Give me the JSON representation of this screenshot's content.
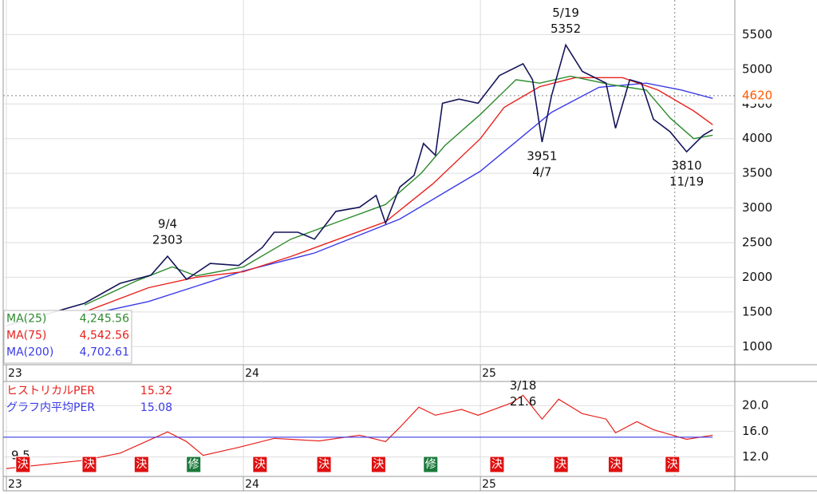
{
  "chart_data": {
    "type": "line",
    "xlim": [
      23,
      26.07
    ],
    "xticks": [
      23,
      24,
      25
    ],
    "ylim": [
      750,
      6000
    ],
    "yticks": [
      1000,
      1500,
      2000,
      2500,
      3000,
      3500,
      4000,
      4500,
      5000,
      5500
    ],
    "grid": true,
    "last_price": 4620,
    "last_price_color": "#ff5a00",
    "cursor_x": 25.82,
    "series": [
      {
        "color": "#14145a",
        "x": [
          23.0,
          23.33,
          23.48,
          23.61,
          23.68,
          23.76,
          23.86,
          23.98,
          24.08,
          24.13,
          24.23,
          24.3,
          24.39,
          24.49,
          24.56,
          24.6,
          24.66,
          24.72,
          24.76,
          24.81,
          24.84,
          24.91,
          24.99,
          25.08,
          25.18,
          25.22,
          25.26,
          25.3,
          25.36,
          25.43,
          25.53,
          25.57,
          25.63,
          25.68,
          25.73,
          25.8,
          25.87,
          25.94,
          25.98
        ],
        "values": [
          1300,
          1625,
          1913,
          2030,
          2303,
          1970,
          2200,
          2170,
          2430,
          2650,
          2650,
          2550,
          2950,
          3010,
          3180,
          2780,
          3300,
          3470,
          3930,
          3760,
          4510,
          4570,
          4510,
          4910,
          5080,
          4850,
          3951,
          4620,
          5352,
          4970,
          4800,
          4150,
          4850,
          4800,
          4280,
          4100,
          3810,
          4050,
          4130
        ]
      },
      {
        "name": "MA(25)",
        "color": "#2e8b2e",
        "last": {
          "value": 4245.56,
          "label": "4,245.56"
        },
        "x": [
          23.33,
          23.55,
          23.7,
          23.8,
          24.0,
          24.2,
          24.4,
          24.6,
          24.75,
          24.85,
          25.0,
          25.15,
          25.25,
          25.38,
          25.55,
          25.7,
          25.8,
          25.9,
          25.98
        ],
        "values": [
          1600,
          1950,
          2150,
          2020,
          2150,
          2550,
          2800,
          3050,
          3500,
          3900,
          4350,
          4850,
          4800,
          4900,
          4780,
          4700,
          4300,
          4000,
          4050
        ]
      },
      {
        "name": "MA(75)",
        "color": "#e8201c",
        "last": {
          "value": 4542.56,
          "label": "4,542.56"
        },
        "x": [
          23.33,
          23.6,
          23.8,
          24.0,
          24.2,
          24.4,
          24.6,
          24.8,
          25.0,
          25.1,
          25.25,
          25.4,
          25.6,
          25.75,
          25.9,
          25.98
        ],
        "values": [
          1500,
          1850,
          2000,
          2080,
          2300,
          2550,
          2800,
          3350,
          4000,
          4450,
          4750,
          4880,
          4880,
          4700,
          4400,
          4200
        ]
      },
      {
        "name": "MA(200)",
        "color": "#3a3ae8",
        "last": {
          "value": 4702.61,
          "label": "4,702.61"
        },
        "x": [
          23.33,
          23.6,
          24.0,
          24.3,
          24.66,
          25.0,
          25.3,
          25.5,
          25.7,
          25.85,
          25.98
        ],
        "values": [
          1450,
          1650,
          2090,
          2350,
          2840,
          3530,
          4380,
          4740,
          4800,
          4700,
          4580
        ]
      }
    ],
    "annotations": [
      {
        "date": "9/4",
        "x": 23.68,
        "value": 2303
      },
      {
        "date": "5/19",
        "x": 25.36,
        "value": 5352
      },
      {
        "date": "4/7",
        "x": 25.26,
        "value": 3951
      },
      {
        "date": "11/19",
        "x": 25.87,
        "value": 3810
      }
    ],
    "per": {
      "ylim": [
        9.1,
        23.75
      ],
      "yticks": [
        {
          "value": 12,
          "label": "12.0"
        },
        {
          "value": 16,
          "label": "16.0"
        },
        {
          "value": 20,
          "label": "20.0"
        }
      ],
      "historical": {
        "name": "ヒストリカルPER",
        "color": "#e8201c",
        "last": 15.32,
        "x": [
          23.0,
          23.33,
          23.48,
          23.68,
          23.76,
          23.83,
          23.98,
          24.13,
          24.32,
          24.49,
          24.6,
          24.66,
          24.74,
          24.81,
          24.92,
          24.99,
          25.13,
          25.18,
          25.26,
          25.33,
          25.43,
          25.53,
          25.57,
          25.66,
          25.73,
          25.81,
          25.87,
          25.98
        ],
        "values": [
          10.2,
          11.5,
          12.6,
          15.9,
          14.4,
          12.25,
          13.5,
          14.9,
          14.5,
          15.4,
          14.4,
          16.6,
          19.75,
          18.5,
          19.4,
          18.5,
          20.4,
          21.6,
          17.9,
          21.0,
          18.75,
          17.9,
          15.75,
          17.5,
          16.25,
          15.4,
          14.75,
          15.4
        ]
      },
      "average": {
        "name": "グラフ内平均PER",
        "color": "#3a3ae8",
        "value": 15.08
      },
      "annotations": [
        {
          "date": "3/18",
          "x": 25.18,
          "value": 21.6
        },
        {
          "x": 23.0,
          "value": 9.5
        }
      ],
      "events": [
        {
          "label": "決",
          "x": 23.07
        },
        {
          "label": "決",
          "x": 23.35
        },
        {
          "label": "決",
          "x": 23.57
        },
        {
          "label": "修",
          "x": 23.79
        },
        {
          "label": "決",
          "x": 24.07
        },
        {
          "label": "決",
          "x": 24.34
        },
        {
          "label": "決",
          "x": 24.57
        },
        {
          "label": "修",
          "x": 24.79
        },
        {
          "label": "決",
          "x": 25.07
        },
        {
          "label": "決",
          "x": 25.34
        },
        {
          "label": "決",
          "x": 25.57
        },
        {
          "label": "決",
          "x": 25.81
        }
      ]
    }
  }
}
